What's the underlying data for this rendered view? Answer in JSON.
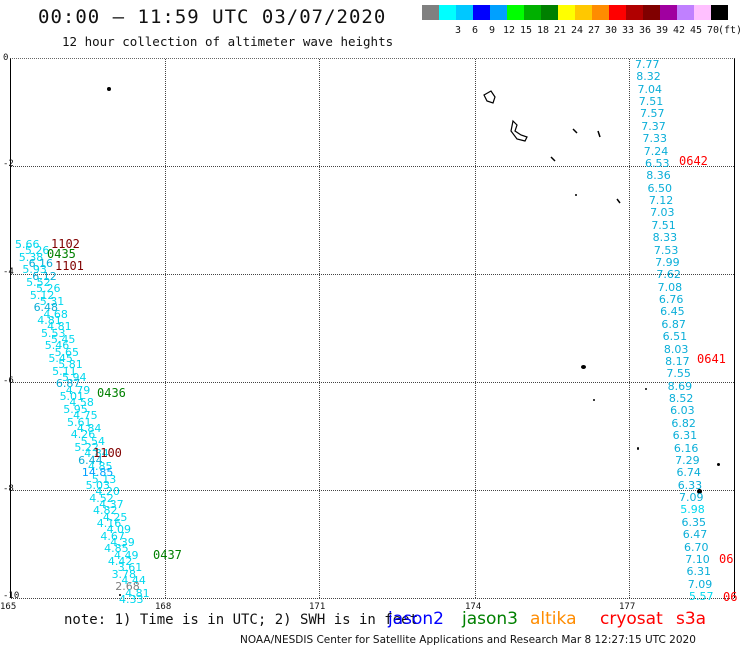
{
  "title": "00:00 – 11:59 UTC 03/07/2020",
  "subtitle": "12 hour collection of altimeter wave heights",
  "legend": {
    "unit": "(ft)",
    "items": [
      {
        "color": "#808080",
        "label": ""
      },
      {
        "color": "#00ffff",
        "label": "3"
      },
      {
        "color": "#00c8ff",
        "label": "6"
      },
      {
        "color": "#0000ff",
        "label": "9"
      },
      {
        "color": "#00a0ff",
        "label": "12"
      },
      {
        "color": "#00ff00",
        "label": "15"
      },
      {
        "color": "#00b000",
        "label": "18"
      },
      {
        "color": "#008000",
        "label": "21"
      },
      {
        "color": "#ffff00",
        "label": "24"
      },
      {
        "color": "#ffc800",
        "label": "27"
      },
      {
        "color": "#ff8c00",
        "label": "30"
      },
      {
        "color": "#ff0000",
        "label": "33"
      },
      {
        "color": "#b00000",
        "label": "36"
      },
      {
        "color": "#800000",
        "label": "39"
      },
      {
        "color": "#a000a0",
        "label": "42"
      },
      {
        "color": "#c080ff",
        "label": "45"
      },
      {
        "color": "#ffc0ff",
        "label": "70"
      },
      {
        "color": "#000000",
        "label": ""
      }
    ]
  },
  "axes": {
    "y_labels": [
      "0",
      "-2",
      "-4",
      "-6",
      "-8",
      "-10"
    ],
    "x_labels": [
      "165",
      "168",
      "171",
      "174",
      "177"
    ]
  },
  "tracks": {
    "left": [
      "5.66",
      "5.26",
      "5.38",
      "6.16",
      "5.93",
      "6.12",
      "5.52",
      "5.26",
      "5.12",
      "5.31",
      "6.48",
      "4.68",
      "4.81",
      "4.81",
      "5.53",
      "5.45",
      "5.46",
      "5.65",
      "5.45",
      "5.81",
      "5.11",
      "5.94",
      "6.87",
      "4.79",
      "5.01",
      "4.58",
      "5.95",
      "4.75",
      "5.61",
      "4.84",
      "4.26",
      "5.54",
      "5.22",
      "4.84",
      "6.44",
      "4.85",
      "14.85",
      "5.13",
      "5.03",
      "4.20",
      "4.52",
      "4.37",
      "4.82",
      "4.25",
      "4.16",
      "4.09",
      "4.67",
      "4.39",
      "4.85",
      "4.49",
      "4.42",
      "3.61",
      "3.78",
      "4.44",
      "2.68",
      "4.81",
      "4.33"
    ],
    "right": [
      "7.77",
      "8.32",
      "7.04",
      "7.51",
      "7.57",
      "7.37",
      "7.33",
      "7.24",
      "6.53",
      "8.36",
      "6.50",
      "7.12",
      "7.03",
      "7.51",
      "8.33",
      "7.53",
      "7.99",
      "7.62",
      "7.08",
      "6.76",
      "6.45",
      "6.87",
      "6.51",
      "8.03",
      "8.17",
      "7.55",
      "8.69",
      "8.52",
      "6.03",
      "6.82",
      "6.31",
      "6.16",
      "7.29",
      "6.74",
      "6.33",
      "7.09",
      "5.98",
      "6.35",
      "6.47",
      "6.70",
      "7.10",
      "6.31",
      "7.09",
      "5.57"
    ]
  },
  "times": {
    "t1102": "1102",
    "t0435": "0435",
    "t1101": "1101",
    "t0436": "0436",
    "t1100": "1100",
    "t0437": "0437",
    "t0642": "0642",
    "t0641": "0641",
    "t06a": "06",
    "t06b": "06"
  },
  "note": "note: 1) Time is in UTC; 2) SWH is in feet",
  "satellites": [
    {
      "name": "jason2",
      "color": "#0000ff"
    },
    {
      "name": "jason3",
      "color": "#008000"
    },
    {
      "name": "altika",
      "color": "#ff8c00"
    },
    {
      "name": "cryosat",
      "color": "#ff0000"
    },
    {
      "name": "s3a",
      "color": "#ff0000"
    }
  ],
  "footer": "NOAA/NESDIS Center for Satellite Applications and Research   Mar  8 12:27:15 UTC 2020"
}
